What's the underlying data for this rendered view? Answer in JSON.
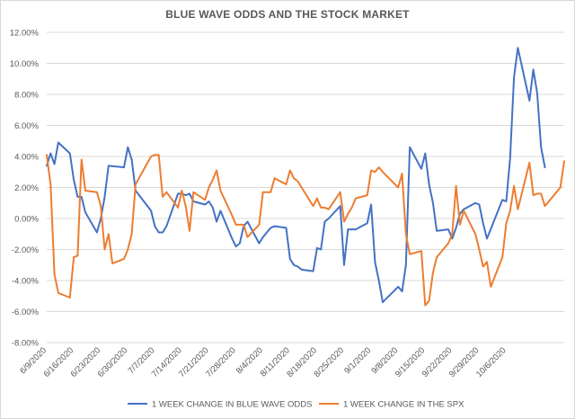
{
  "chart_data": {
    "type": "line",
    "title": "BLUE WAVE ODDS AND THE STOCK MARKET",
    "xlabel": "",
    "ylabel": "",
    "ylim": [
      -0.08,
      0.12
    ],
    "yticks": [
      "12.00%",
      "10.00%",
      "8.00%",
      "6.00%",
      "4.00%",
      "2.00%",
      "0.00%",
      "-2.00%",
      "-4.00%",
      "-6.00%",
      "-8.00%"
    ],
    "xticks": [
      "6/9/2020",
      "6/16/2020",
      "6/23/2020",
      "6/30/2020",
      "7/7/2020",
      "7/14/2020",
      "7/21/2020",
      "7/28/2020",
      "8/4/2020",
      "8/11/2020",
      "8/18/2020",
      "8/25/2020",
      "9/1/2020",
      "9/8/2020",
      "9/15/2020",
      "9/22/2020",
      "9/29/2020",
      "10/6/2020"
    ],
    "grid": true,
    "legend_position": "bottom",
    "series": [
      {
        "name": "1 WEEK CHANGE IN BLUE WAVE ODDS",
        "color": "#4472C4",
        "points": [
          [
            "2020-06-09",
            0.034
          ],
          [
            "2020-06-10",
            0.042
          ],
          [
            "2020-06-11",
            0.035
          ],
          [
            "2020-06-12",
            0.049
          ],
          [
            "2020-06-15",
            0.042
          ],
          [
            "2020-06-16",
            0.025
          ],
          [
            "2020-06-17",
            0.014
          ],
          [
            "2020-06-18",
            0.014
          ],
          [
            "2020-06-19",
            0.004
          ],
          [
            "2020-06-22",
            -0.009
          ],
          [
            "2020-06-23",
            0.0
          ],
          [
            "2020-06-24",
            0.014
          ],
          [
            "2020-06-25",
            0.034
          ],
          [
            "2020-06-29",
            0.033
          ],
          [
            "2020-06-30",
            0.046
          ],
          [
            "2020-07-01",
            0.038
          ],
          [
            "2020-07-02",
            0.018
          ],
          [
            "2020-07-06",
            0.005
          ],
          [
            "2020-07-07",
            -0.005
          ],
          [
            "2020-07-08",
            -0.009
          ],
          [
            "2020-07-09",
            -0.009
          ],
          [
            "2020-07-10",
            -0.005
          ],
          [
            "2020-07-13",
            0.016
          ],
          [
            "2020-07-14",
            0.016
          ],
          [
            "2020-07-15",
            0.015
          ],
          [
            "2020-07-16",
            0.016
          ],
          [
            "2020-07-17",
            0.011
          ],
          [
            "2020-07-20",
            0.009
          ],
          [
            "2020-07-21",
            0.011
          ],
          [
            "2020-07-22",
            0.007
          ],
          [
            "2020-07-23",
            -0.002
          ],
          [
            "2020-07-24",
            0.005
          ],
          [
            "2020-07-27",
            -0.013
          ],
          [
            "2020-07-28",
            -0.018
          ],
          [
            "2020-07-29",
            -0.016
          ],
          [
            "2020-07-30",
            -0.005
          ],
          [
            "2020-07-31",
            -0.002
          ],
          [
            "2020-08-03",
            -0.016
          ],
          [
            "2020-08-04",
            -0.012
          ],
          [
            "2020-08-05",
            -0.009
          ],
          [
            "2020-08-06",
            -0.006
          ],
          [
            "2020-08-07",
            -0.005
          ],
          [
            "2020-08-10",
            -0.006
          ],
          [
            "2020-08-11",
            -0.026
          ],
          [
            "2020-08-12",
            -0.03
          ],
          [
            "2020-08-13",
            -0.031
          ],
          [
            "2020-08-14",
            -0.033
          ],
          [
            "2020-08-17",
            -0.034
          ],
          [
            "2020-08-18",
            -0.019
          ],
          [
            "2020-08-19",
            -0.02
          ],
          [
            "2020-08-20",
            -0.002
          ],
          [
            "2020-08-21",
            0.0
          ],
          [
            "2020-08-24",
            0.008
          ],
          [
            "2020-08-25",
            -0.03
          ],
          [
            "2020-08-26",
            -0.007
          ],
          [
            "2020-08-27",
            -0.007
          ],
          [
            "2020-08-28",
            -0.007
          ],
          [
            "2020-08-31",
            -0.003
          ],
          [
            "2020-09-01",
            0.009
          ],
          [
            "2020-09-02",
            -0.028
          ],
          [
            "2020-09-03",
            -0.04
          ],
          [
            "2020-09-04",
            -0.054
          ],
          [
            "2020-09-08",
            -0.044
          ],
          [
            "2020-09-09",
            -0.047
          ],
          [
            "2020-09-10",
            -0.03
          ],
          [
            "2020-09-11",
            0.046
          ],
          [
            "2020-09-14",
            0.032
          ],
          [
            "2020-09-15",
            0.042
          ],
          [
            "2020-09-16",
            0.022
          ],
          [
            "2020-09-17",
            0.01
          ],
          [
            "2020-09-18",
            -0.008
          ],
          [
            "2020-09-21",
            -0.007
          ],
          [
            "2020-09-22",
            -0.013
          ],
          [
            "2020-09-23",
            -0.006
          ],
          [
            "2020-09-24",
            0.003
          ],
          [
            "2020-09-25",
            0.006
          ],
          [
            "2020-09-28",
            0.01
          ],
          [
            "2020-09-29",
            0.009
          ],
          [
            "2020-09-30",
            -0.003
          ],
          [
            "2020-10-01",
            -0.013
          ],
          [
            "2020-10-05",
            0.012
          ],
          [
            "2020-10-06",
            0.011
          ],
          [
            "2020-10-07",
            0.039
          ],
          [
            "2020-10-08",
            0.091
          ],
          [
            "2020-10-09",
            0.11
          ],
          [
            "2020-10-12",
            0.076
          ],
          [
            "2020-10-13",
            0.096
          ],
          [
            "2020-10-14",
            0.081
          ],
          [
            "2020-10-15",
            0.046
          ],
          [
            "2020-10-16",
            0.033
          ]
        ]
      },
      {
        "name": "1 WEEK CHANGE IN THE SPX",
        "color": "#ED7D31",
        "points": [
          [
            "2020-06-09",
            0.041
          ],
          [
            "2020-06-10",
            0.022
          ],
          [
            "2020-06-11",
            -0.036
          ],
          [
            "2020-06-12",
            -0.048
          ],
          [
            "2020-06-15",
            -0.051
          ],
          [
            "2020-06-16",
            -0.025
          ],
          [
            "2020-06-17",
            -0.024
          ],
          [
            "2020-06-18",
            0.038
          ],
          [
            "2020-06-19",
            0.018
          ],
          [
            "2020-06-22",
            0.017
          ],
          [
            "2020-06-23",
            0.008
          ],
          [
            "2020-06-24",
            -0.02
          ],
          [
            "2020-06-25",
            -0.01
          ],
          [
            "2020-06-26",
            -0.029
          ],
          [
            "2020-06-29",
            -0.026
          ],
          [
            "2020-06-30",
            -0.02
          ],
          [
            "2020-07-01",
            -0.01
          ],
          [
            "2020-07-02",
            0.022
          ],
          [
            "2020-07-06",
            0.04
          ],
          [
            "2020-07-07",
            0.041
          ],
          [
            "2020-07-08",
            0.041
          ],
          [
            "2020-07-09",
            0.014
          ],
          [
            "2020-07-10",
            0.017
          ],
          [
            "2020-07-13",
            0.007
          ],
          [
            "2020-07-14",
            0.018
          ],
          [
            "2020-07-15",
            0.008
          ],
          [
            "2020-07-16",
            -0.008
          ],
          [
            "2020-07-17",
            0.017
          ],
          [
            "2020-07-20",
            0.012
          ],
          [
            "2020-07-21",
            0.02
          ],
          [
            "2020-07-22",
            0.025
          ],
          [
            "2020-07-23",
            0.031
          ],
          [
            "2020-07-24",
            0.018
          ],
          [
            "2020-07-27",
            0.002
          ],
          [
            "2020-07-28",
            -0.004
          ],
          [
            "2020-07-29",
            -0.004
          ],
          [
            "2020-07-30",
            -0.004
          ],
          [
            "2020-07-31",
            -0.012
          ],
          [
            "2020-08-03",
            -0.004
          ],
          [
            "2020-08-04",
            0.017
          ],
          [
            "2020-08-05",
            0.017
          ],
          [
            "2020-08-06",
            0.017
          ],
          [
            "2020-08-07",
            0.026
          ],
          [
            "2020-08-10",
            0.022
          ],
          [
            "2020-08-11",
            0.031
          ],
          [
            "2020-08-12",
            0.026
          ],
          [
            "2020-08-13",
            0.024
          ],
          [
            "2020-08-14",
            0.02
          ],
          [
            "2020-08-17",
            0.008
          ],
          [
            "2020-08-18",
            0.013
          ],
          [
            "2020-08-19",
            0.007
          ],
          [
            "2020-08-20",
            0.007
          ],
          [
            "2020-08-21",
            0.006
          ],
          [
            "2020-08-24",
            0.017
          ],
          [
            "2020-08-25",
            -0.002
          ],
          [
            "2020-08-26",
            0.003
          ],
          [
            "2020-08-27",
            0.007
          ],
          [
            "2020-08-28",
            0.013
          ],
          [
            "2020-08-31",
            0.015
          ],
          [
            "2020-09-01",
            0.031
          ],
          [
            "2020-09-02",
            0.03
          ],
          [
            "2020-09-03",
            0.033
          ],
          [
            "2020-09-04",
            0.03
          ],
          [
            "2020-09-08",
            0.02
          ],
          [
            "2020-09-09",
            0.029
          ],
          [
            "2020-09-10",
            -0.01
          ],
          [
            "2020-09-11",
            -0.023
          ],
          [
            "2020-09-14",
            -0.021
          ],
          [
            "2020-09-15",
            -0.056
          ],
          [
            "2020-09-16",
            -0.053
          ],
          [
            "2020-09-17",
            -0.035
          ],
          [
            "2020-09-18",
            -0.025
          ],
          [
            "2020-09-21",
            -0.016
          ],
          [
            "2020-09-22",
            -0.01
          ],
          [
            "2020-09-23",
            0.021
          ],
          [
            "2020-09-24",
            -0.004
          ],
          [
            "2020-09-25",
            0.005
          ],
          [
            "2020-09-28",
            -0.01
          ],
          [
            "2020-09-29",
            -0.02
          ],
          [
            "2020-09-30",
            -0.031
          ],
          [
            "2020-10-01",
            -0.028
          ],
          [
            "2020-10-02",
            -0.044
          ],
          [
            "2020-10-05",
            -0.025
          ],
          [
            "2020-10-06",
            -0.003
          ],
          [
            "2020-10-07",
            0.005
          ],
          [
            "2020-10-08",
            0.021
          ],
          [
            "2020-10-09",
            0.006
          ],
          [
            "2020-10-12",
            0.036
          ],
          [
            "2020-10-13",
            0.015
          ],
          [
            "2020-10-14",
            0.016
          ],
          [
            "2020-10-15",
            0.016
          ],
          [
            "2020-10-16",
            0.008
          ],
          [
            "2020-10-19",
            0.017
          ],
          [
            "2020-10-20",
            0.02
          ],
          [
            "2020-10-21",
            0.037
          ]
        ]
      }
    ]
  }
}
